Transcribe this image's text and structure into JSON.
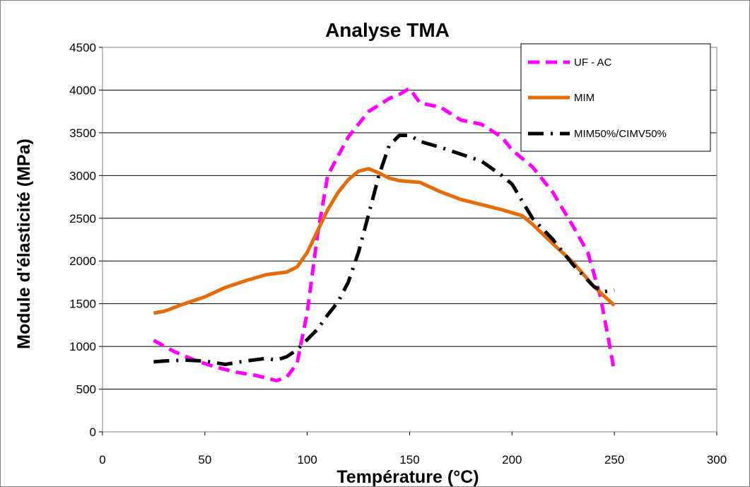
{
  "chart_data": {
    "type": "line",
    "title": "Analyse TMA",
    "xlabel": "Température (°C)",
    "ylabel": "Module d'élasticité (MPa)",
    "xlim": [
      0,
      300
    ],
    "ylim": [
      0,
      4500
    ],
    "xticks": [
      0,
      50,
      100,
      150,
      200,
      250,
      300
    ],
    "yticks": [
      0,
      500,
      1000,
      1500,
      2000,
      2500,
      3000,
      3500,
      4000,
      4500
    ],
    "grid": "horizontal",
    "legend_position": "top-right",
    "series": [
      {
        "name": "UF - AC",
        "color": "#FF00FF",
        "dash": "dashed",
        "points": [
          [
            25,
            1070
          ],
          [
            35,
            940
          ],
          [
            45,
            840
          ],
          [
            55,
            760
          ],
          [
            65,
            700
          ],
          [
            75,
            660
          ],
          [
            85,
            600
          ],
          [
            90,
            640
          ],
          [
            95,
            800
          ],
          [
            100,
            1400
          ],
          [
            105,
            2300
          ],
          [
            110,
            3000
          ],
          [
            120,
            3450
          ],
          [
            130,
            3750
          ],
          [
            140,
            3900
          ],
          [
            145,
            3950
          ],
          [
            150,
            4020
          ],
          [
            155,
            3850
          ],
          [
            165,
            3800
          ],
          [
            175,
            3650
          ],
          [
            185,
            3600
          ],
          [
            195,
            3450
          ],
          [
            200,
            3300
          ],
          [
            210,
            3100
          ],
          [
            220,
            2800
          ],
          [
            230,
            2400
          ],
          [
            237,
            2100
          ],
          [
            243,
            1600
          ],
          [
            247,
            1100
          ],
          [
            250,
            700
          ]
        ]
      },
      {
        "name": "MIM",
        "color": "#E46C0A",
        "dash": "solid",
        "points": [
          [
            25,
            1390
          ],
          [
            30,
            1410
          ],
          [
            40,
            1500
          ],
          [
            50,
            1580
          ],
          [
            60,
            1690
          ],
          [
            70,
            1770
          ],
          [
            80,
            1840
          ],
          [
            90,
            1870
          ],
          [
            95,
            1930
          ],
          [
            100,
            2100
          ],
          [
            105,
            2350
          ],
          [
            110,
            2600
          ],
          [
            115,
            2800
          ],
          [
            120,
            2950
          ],
          [
            125,
            3050
          ],
          [
            130,
            3080
          ],
          [
            135,
            3030
          ],
          [
            140,
            2970
          ],
          [
            145,
            2940
          ],
          [
            155,
            2920
          ],
          [
            165,
            2810
          ],
          [
            175,
            2720
          ],
          [
            185,
            2660
          ],
          [
            195,
            2600
          ],
          [
            205,
            2530
          ],
          [
            210,
            2430
          ],
          [
            220,
            2200
          ],
          [
            230,
            1980
          ],
          [
            240,
            1700
          ],
          [
            250,
            1480
          ]
        ]
      },
      {
        "name": "MIM50%/CIMV50%",
        "color": "#000000",
        "dash": "dashdot",
        "points": [
          [
            25,
            820
          ],
          [
            30,
            830
          ],
          [
            40,
            840
          ],
          [
            50,
            830
          ],
          [
            60,
            790
          ],
          [
            70,
            830
          ],
          [
            80,
            860
          ],
          [
            85,
            840
          ],
          [
            90,
            880
          ],
          [
            95,
            960
          ],
          [
            100,
            1080
          ],
          [
            105,
            1200
          ],
          [
            110,
            1370
          ],
          [
            115,
            1520
          ],
          [
            120,
            1750
          ],
          [
            125,
            2100
          ],
          [
            130,
            2550
          ],
          [
            135,
            3000
          ],
          [
            140,
            3350
          ],
          [
            145,
            3470
          ],
          [
            150,
            3470
          ],
          [
            155,
            3400
          ],
          [
            165,
            3330
          ],
          [
            175,
            3250
          ],
          [
            185,
            3170
          ],
          [
            195,
            3000
          ],
          [
            200,
            2900
          ],
          [
            205,
            2700
          ],
          [
            210,
            2500
          ],
          [
            220,
            2250
          ],
          [
            230,
            1950
          ],
          [
            240,
            1700
          ],
          [
            245,
            1640
          ],
          [
            250,
            1660
          ]
        ]
      }
    ]
  }
}
